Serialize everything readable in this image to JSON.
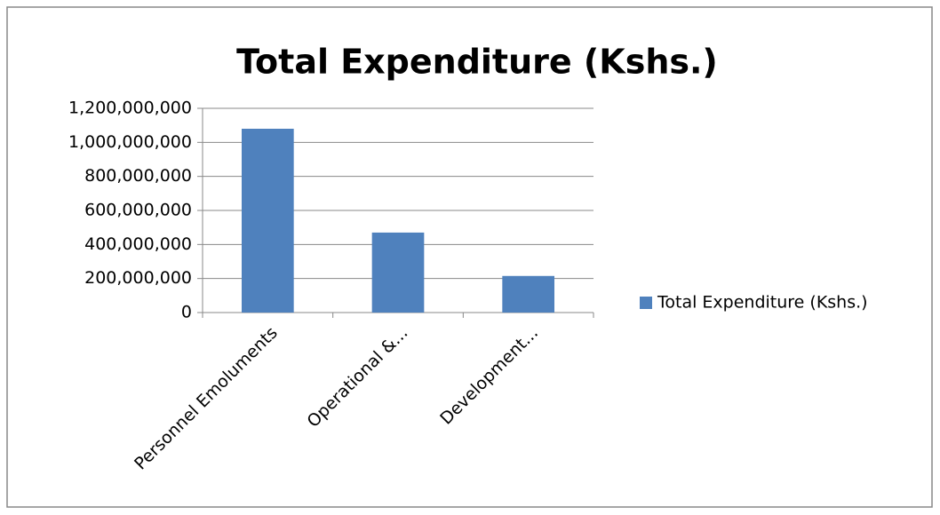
{
  "chart_data": {
    "type": "bar",
    "title": "Total Expenditure (Kshs.)",
    "categories": [
      "Personnel Emoluments",
      "Operational &...",
      "Development..."
    ],
    "series": [
      {
        "name": "Total Expenditure (Kshs.)",
        "color": "#4f81bd",
        "values": [
          1080000000,
          470000000,
          215000000
        ]
      }
    ],
    "ylim": [
      0,
      1200000000
    ],
    "yticks": [
      0,
      {
        "value": 200000000,
        "label": "200,000,000"
      },
      {
        "value": 400000000,
        "label": "400,000,000"
      },
      {
        "value": 600000000,
        "label": "600,000,000"
      },
      {
        "value": 800000000,
        "label": "800,000,000"
      },
      {
        "value": 1000000000,
        "label": "1,000,000,000"
      },
      {
        "value": 1200000000,
        "label": "1,200,000,000"
      }
    ],
    "grid": true,
    "legend": "right"
  }
}
